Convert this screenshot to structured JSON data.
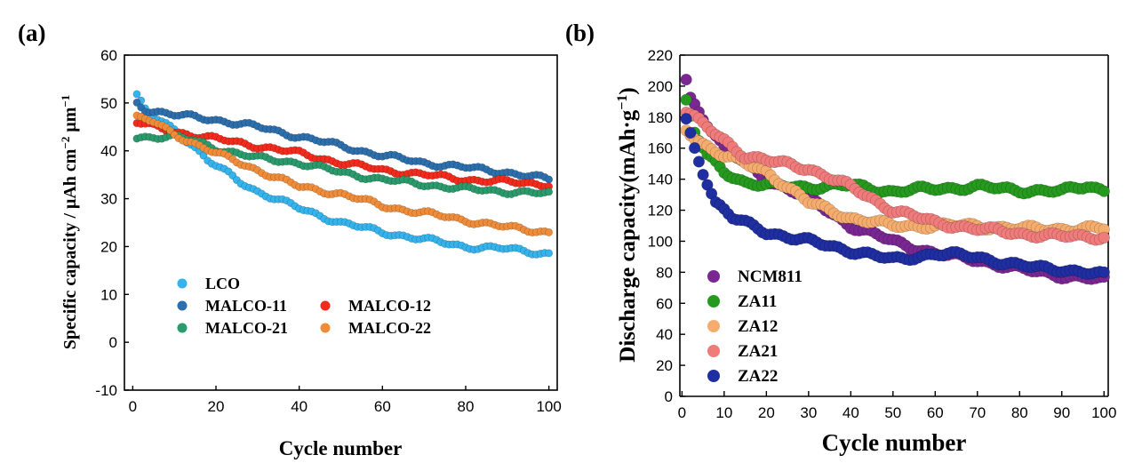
{
  "chart_data": [
    {
      "panel_label": "(a)",
      "type": "scatter",
      "xlabel": "Cycle number",
      "ylabel_parts": [
        "Specific capacity / μAh cm",
        "−2",
        " μm",
        "−1"
      ],
      "xlim": [
        -2,
        102
      ],
      "ylim": [
        -10,
        60
      ],
      "xticks": [
        0,
        20,
        40,
        60,
        80,
        100
      ],
      "yticks": [
        -10,
        0,
        10,
        20,
        30,
        40,
        50,
        60
      ],
      "series": [
        {
          "name": "LCO",
          "color": "#35b3ec",
          "anchors": [
            [
              1,
              51.5
            ],
            [
              3,
              48.5
            ],
            [
              6,
              46.5
            ],
            [
              10,
              44.5
            ],
            [
              14,
              41.5
            ],
            [
              18,
              38
            ],
            [
              25,
              34
            ],
            [
              30,
              31.5
            ],
            [
              40,
              28
            ],
            [
              50,
              25
            ],
            [
              60,
              23
            ],
            [
              70,
              21.5
            ],
            [
              80,
              20
            ],
            [
              90,
              19.5
            ],
            [
              100,
              18.5
            ]
          ]
        },
        {
          "name": "MALCO-11",
          "color": "#2c6fac",
          "anchors": [
            [
              1,
              50
            ],
            [
              3,
              48.7
            ],
            [
              10,
              47.5
            ],
            [
              20,
              46.5
            ],
            [
              30,
              45
            ],
            [
              40,
              43
            ],
            [
              50,
              41
            ],
            [
              60,
              39
            ],
            [
              70,
              37.5
            ],
            [
              80,
              36.5
            ],
            [
              90,
              35.5
            ],
            [
              100,
              34
            ]
          ]
        },
        {
          "name": "MALCO-12",
          "color": "#f22b1d",
          "anchors": [
            [
              1,
              46
            ],
            [
              5,
              45
            ],
            [
              10,
              44
            ],
            [
              20,
              42.5
            ],
            [
              30,
              41
            ],
            [
              40,
              39.5
            ],
            [
              50,
              37.5
            ],
            [
              60,
              36
            ],
            [
              70,
              35
            ],
            [
              80,
              34
            ],
            [
              90,
              33.5
            ],
            [
              100,
              33
            ]
          ]
        },
        {
          "name": "MALCO-21",
          "color": "#2b9a6c",
          "anchors": [
            [
              1,
              42.7
            ],
            [
              5,
              43
            ],
            [
              10,
              43
            ],
            [
              15,
              42
            ],
            [
              20,
              40.5
            ],
            [
              25,
              39.5
            ],
            [
              30,
              38.5
            ],
            [
              40,
              37.5
            ],
            [
              50,
              35.5
            ],
            [
              60,
              34
            ],
            [
              70,
              33
            ],
            [
              80,
              32
            ],
            [
              90,
              31.5
            ],
            [
              100,
              31
            ]
          ]
        },
        {
          "name": "MALCO-22",
          "color": "#ef8c39",
          "anchors": [
            [
              1,
              47
            ],
            [
              5,
              46
            ],
            [
              10,
              43.5
            ],
            [
              15,
              41.5
            ],
            [
              20,
              39.5
            ],
            [
              30,
              36
            ],
            [
              40,
              32.5
            ],
            [
              50,
              31
            ],
            [
              60,
              28.5
            ],
            [
              70,
              27
            ],
            [
              80,
              25.5
            ],
            [
              90,
              24
            ],
            [
              100,
              23
            ]
          ]
        }
      ]
    },
    {
      "panel_label": "(b)",
      "type": "scatter",
      "xlabel": "Cycle number",
      "ylabel_parts": [
        "Discharge capacity(mAh·g",
        "−1",
        ")"
      ],
      "xlim": [
        -0.5,
        101
      ],
      "ylim": [
        0,
        220
      ],
      "xticks": [
        0,
        10,
        20,
        30,
        40,
        50,
        60,
        70,
        80,
        90,
        100
      ],
      "yticks": [
        0,
        20,
        40,
        60,
        80,
        100,
        120,
        140,
        160,
        180,
        200,
        220
      ],
      "series": [
        {
          "name": "NCM811",
          "color": "#7a2791",
          "anchors": [
            [
              1,
              204
            ],
            [
              2,
              192
            ],
            [
              5,
              180
            ],
            [
              10,
              160
            ],
            [
              20,
              140
            ],
            [
              30,
              128
            ],
            [
              40,
              110
            ],
            [
              50,
              100
            ],
            [
              60,
              92
            ],
            [
              70,
              88
            ],
            [
              80,
              82
            ],
            [
              90,
              78
            ],
            [
              100,
              75
            ]
          ]
        },
        {
          "name": "ZA11",
          "color": "#269a1f",
          "anchors": [
            [
              1,
              190
            ],
            [
              3,
              170
            ],
            [
              6,
              155
            ],
            [
              10,
              145
            ],
            [
              15,
              138
            ],
            [
              20,
              136
            ],
            [
              30,
              135
            ],
            [
              40,
              136
            ],
            [
              50,
              132
            ],
            [
              60,
              134
            ],
            [
              70,
              135
            ],
            [
              80,
              133
            ],
            [
              90,
              132
            ],
            [
              96,
              136
            ],
            [
              100,
              133
            ]
          ]
        },
        {
          "name": "ZA12",
          "color": "#f5ad6e",
          "anchors": [
            [
              1,
              172
            ],
            [
              5,
              163
            ],
            [
              10,
              155
            ],
            [
              20,
              145
            ],
            [
              30,
              125
            ],
            [
              40,
              115
            ],
            [
              50,
              110
            ],
            [
              60,
              110
            ],
            [
              70,
              110
            ],
            [
              80,
              108
            ],
            [
              90,
              108
            ],
            [
              100,
              108
            ]
          ]
        },
        {
          "name": "ZA21",
          "color": "#f07b7b",
          "anchors": [
            [
              1,
              184
            ],
            [
              5,
              175
            ],
            [
              10,
              165
            ],
            [
              15,
              155
            ],
            [
              20,
              152
            ],
            [
              30,
              147
            ],
            [
              40,
              135
            ],
            [
              50,
              120
            ],
            [
              60,
              112
            ],
            [
              70,
              108
            ],
            [
              80,
              105
            ],
            [
              90,
              103
            ],
            [
              100,
              103
            ]
          ]
        },
        {
          "name": "ZA22",
          "color": "#1f2ea0",
          "anchors": [
            [
              1,
              178
            ],
            [
              3,
              160
            ],
            [
              5,
              145
            ],
            [
              8,
              125
            ],
            [
              12,
              115
            ],
            [
              20,
              106
            ],
            [
              30,
              100
            ],
            [
              40,
              94
            ],
            [
              50,
              88
            ],
            [
              60,
              92
            ],
            [
              70,
              90
            ],
            [
              80,
              84
            ],
            [
              90,
              82
            ],
            [
              100,
              78
            ]
          ]
        }
      ]
    }
  ]
}
